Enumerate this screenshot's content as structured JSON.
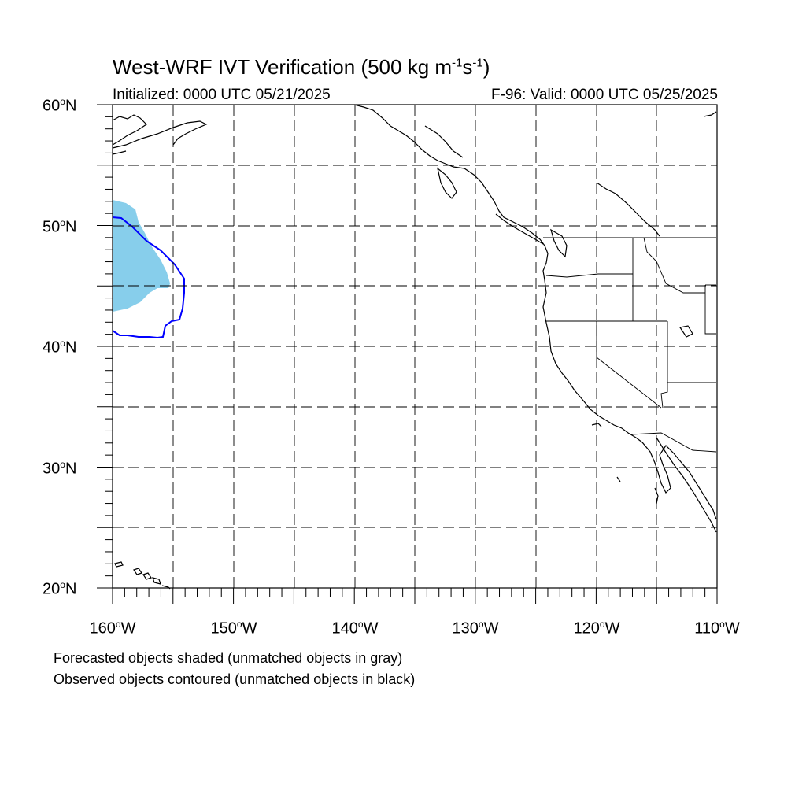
{
  "title": {
    "main": "West-WRF IVT Verification (500 kg m",
    "exp1": "-1",
    "s": "s",
    "exp2": "-1",
    "close": ")"
  },
  "initialized": "Initialized: 0000 UTC 05/21/2025",
  "valid": "F-96: Valid: 0000 UTC 05/25/2025",
  "map": {
    "projection": "cylindrical equidistant",
    "lon_range": [
      -160,
      -110
    ],
    "lat_range": [
      20,
      60
    ],
    "gridlines": "dashed every 5 degrees",
    "lat_labels": [
      {
        "value": "60",
        "suffix": "N"
      },
      {
        "value": "50",
        "suffix": "N"
      },
      {
        "value": "40",
        "suffix": "N"
      },
      {
        "value": "30",
        "suffix": "N"
      },
      {
        "value": "20",
        "suffix": "N"
      }
    ],
    "lon_labels": [
      {
        "value": "160",
        "suffix": "W"
      },
      {
        "value": "150",
        "suffix": "W"
      },
      {
        "value": "140",
        "suffix": "W"
      },
      {
        "value": "130",
        "suffix": "W"
      },
      {
        "value": "120",
        "suffix": "W"
      },
      {
        "value": "110",
        "suffix": "W"
      }
    ],
    "forecast_object_color": "#87ceeb",
    "observed_contour_color": "#0000ff",
    "coastline_color": "#000000"
  },
  "notes": {
    "line1": "Forecasted objects shaded (unmatched objects in gray)",
    "line2": "Observed objects contoured (unmatched objects in black)"
  }
}
